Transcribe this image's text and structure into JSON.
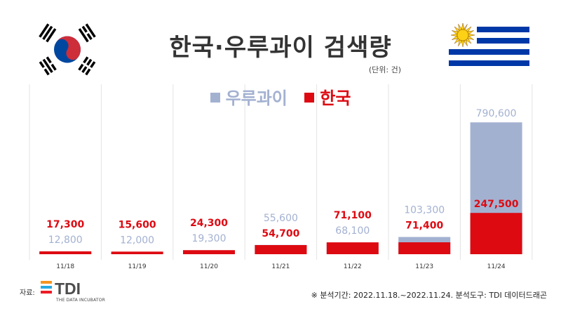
{
  "title": "한국·우루과이 검색량",
  "unit_label": "(단위: 건)",
  "footnote": "※ 분석기간: 2022.11.18.~2022.11.24.   분석도구: TDI 데이터드래곤",
  "source_label": "자료:",
  "logo": {
    "text": "TDI",
    "subtitle": "THE DATA INCUBATOR"
  },
  "colors": {
    "korea": "#dd0a12",
    "uruguay": "#a3b1d1",
    "uruguay_label": "#a3b1d1",
    "grid": "#e3e3e3",
    "text": "#333333"
  },
  "icons": [
    "korea-flag-icon",
    "uruguay-flag-icon",
    "tdi-logo-icon"
  ],
  "chart_data": {
    "type": "bar",
    "stacked": false,
    "categories": [
      "11/18",
      "11/19",
      "11/20",
      "11/21",
      "11/22",
      "11/23",
      "11/24"
    ],
    "series": [
      {
        "name": "우루과이",
        "values": [
          12800,
          12000,
          19300,
          55600,
          68100,
          103300,
          790600
        ]
      },
      {
        "name": "한국",
        "values": [
          17300,
          15600,
          24300,
          54700,
          71100,
          71400,
          247500
        ]
      }
    ],
    "value_labels": {
      "우루과이": [
        "12,800",
        "12,000",
        "19,300",
        "55,600",
        "68,100",
        "103,300",
        "790,600"
      ],
      "한국": [
        "17,300",
        "15,600",
        "24,300",
        "54,700",
        "71,100",
        "71,400",
        "247,500"
      ]
    },
    "ylim": [
      0,
      800000
    ],
    "grid": false,
    "legend_position": "top-center"
  }
}
